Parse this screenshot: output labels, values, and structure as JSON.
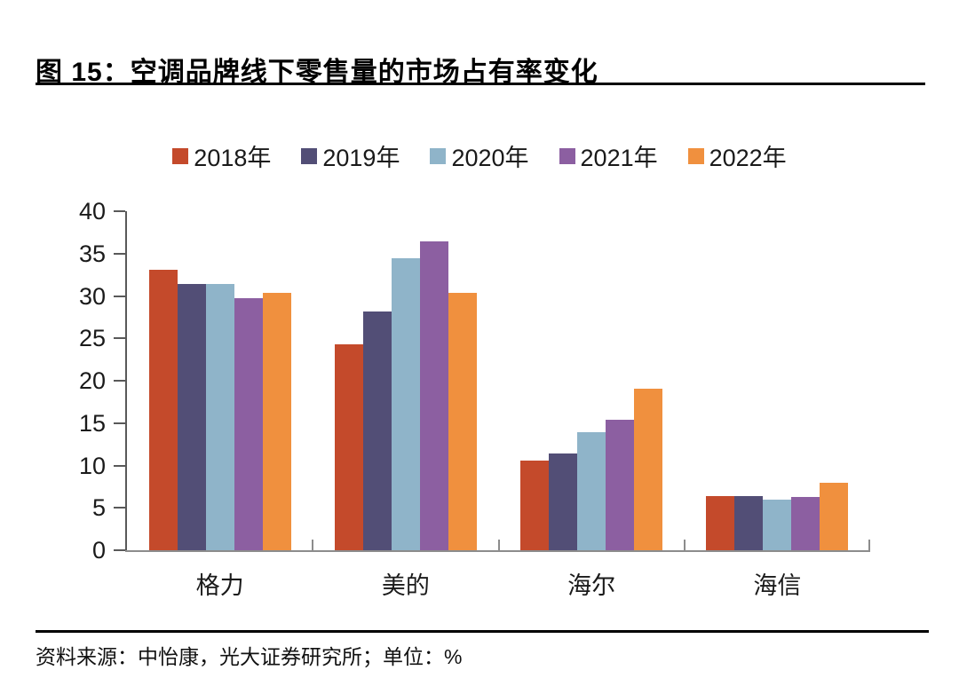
{
  "figure": {
    "title": "图 15：空调品牌线下零售量的市场占有率变化",
    "source_note": "资料来源：中怡康，光大证券研究所；单位：%"
  },
  "chart_data": {
    "type": "bar",
    "title": "空调品牌线下零售量的市场占有率变化",
    "categories": [
      "格力",
      "美的",
      "海尔",
      "海信"
    ],
    "series": [
      {
        "name": "2018年",
        "color": "#C44A2B",
        "values": [
          33.1,
          24.3,
          10.6,
          6.4
        ]
      },
      {
        "name": "2019年",
        "color": "#524E76",
        "values": [
          31.4,
          28.2,
          11.4,
          6.4
        ]
      },
      {
        "name": "2020年",
        "color": "#8FB4C9",
        "values": [
          31.4,
          34.4,
          13.9,
          6.0
        ]
      },
      {
        "name": "2021年",
        "color": "#8C5FA1",
        "values": [
          29.7,
          36.4,
          15.4,
          6.3
        ]
      },
      {
        "name": "2022年",
        "color": "#F0903E",
        "values": [
          30.4,
          30.4,
          19.1,
          8.0
        ]
      }
    ],
    "xlabel": "",
    "ylabel": "",
    "unit": "%",
    "ylim": [
      0,
      40
    ],
    "yticks": [
      0,
      5,
      10,
      15,
      20,
      25,
      30,
      35,
      40
    ],
    "grid": false,
    "legend_position": "top"
  }
}
